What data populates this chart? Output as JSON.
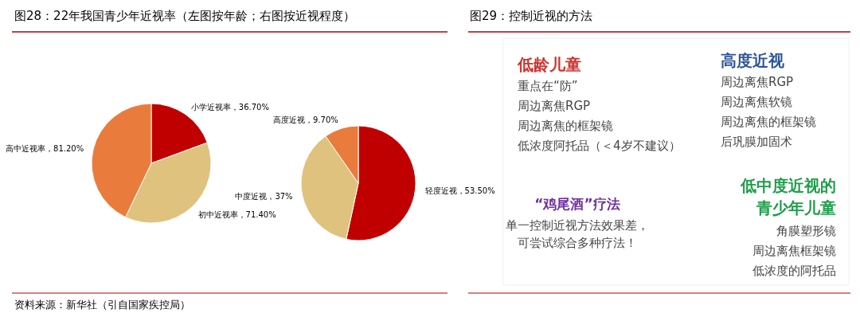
{
  "chart_data": [
    {
      "type": "pie",
      "title": "图28：22年我国青少年近视率（左图按年龄；右图按近视程度）",
      "categories": [
        "小学近视率",
        "初中近视率",
        "高中近视率"
      ],
      "values": [
        36.7,
        71.4,
        81.2
      ],
      "value_labels": [
        "36.70%",
        "71.40%",
        "81.20%"
      ],
      "colors": [
        "#c00000",
        "#dfc27d",
        "#e97c3c"
      ],
      "annotations": [
        "资料来源：新华社（引自国家疾控局）"
      ]
    },
    {
      "type": "pie",
      "categories": [
        "轻度近视",
        "中度近视",
        "高度近视"
      ],
      "values": [
        53.5,
        37,
        9.7
      ],
      "value_labels": [
        "53.50%",
        "37%",
        "9.70%"
      ],
      "colors": [
        "#c00000",
        "#dfc27d",
        "#e97c3c"
      ]
    },
    {
      "type": "other",
      "title": "图29：控制近视的方法",
      "annotations": [
        "低龄儿童",
        "重点在“防”",
        "周边离焦RGP",
        "周边离焦的框架镜",
        "低浓度阿托品（＜4岁不建议）",
        "高度近视",
        "周边离焦RGP",
        "周边离焦软镜",
        "周边离焦的框架镜",
        "后巩膜加固术",
        "“鸡尾酒”疗法",
        "单一控制近视方法效果差，",
        "可尝试综合多种疗法！",
        "低中度近视的",
        "青少年儿童",
        "角膜塑形镜",
        "周边离焦框架镜",
        "低浓度的阿托品"
      ]
    }
  ]
}
